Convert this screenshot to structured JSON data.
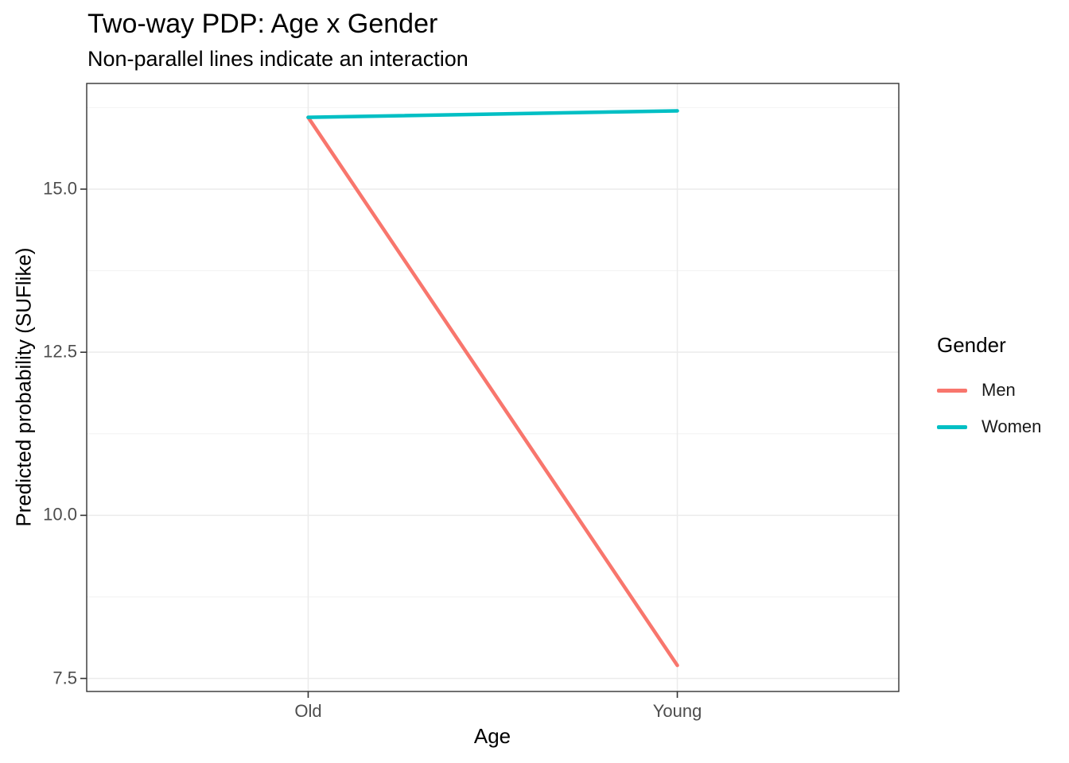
{
  "chart_data": {
    "type": "line",
    "title": "Two-way PDP: Age x Gender",
    "subtitle": "Non-parallel lines indicate an interaction",
    "xlabel": "Age",
    "ylabel": "Predicted probability (SUFlike)",
    "categories": [
      "Old",
      "Young"
    ],
    "series": [
      {
        "name": "Men",
        "color": "#F8766D",
        "values": [
          16.1,
          7.7
        ]
      },
      {
        "name": "Women",
        "color": "#00BFC4",
        "values": [
          16.1,
          16.2
        ]
      }
    ],
    "ylim": [
      7.3,
      16.62
    ],
    "yticks": [
      7.5,
      10.0,
      12.5,
      15.0
    ],
    "ytick_labels": [
      "7.5",
      "10.0",
      "12.5",
      "15.0"
    ],
    "yminor_ticks": [
      8.75,
      11.25,
      13.75,
      16.25
    ],
    "grid": true,
    "panel_border": true,
    "legend": {
      "title": "Gender",
      "position": "right",
      "items": [
        {
          "label": "Men",
          "color": "#F8766D"
        },
        {
          "label": "Women",
          "color": "#00BFC4"
        }
      ]
    }
  },
  "colors": {
    "men_line": "#F8766D",
    "women_line": "#00BFC4",
    "grid_major": "#EBEBEB",
    "grid_minor": "#F2F2F2",
    "panel_border": "#333333",
    "tick_mark": "#333333",
    "tick_label": "#4D4D4D",
    "text": "#000000",
    "background": "#FFFFFF"
  }
}
